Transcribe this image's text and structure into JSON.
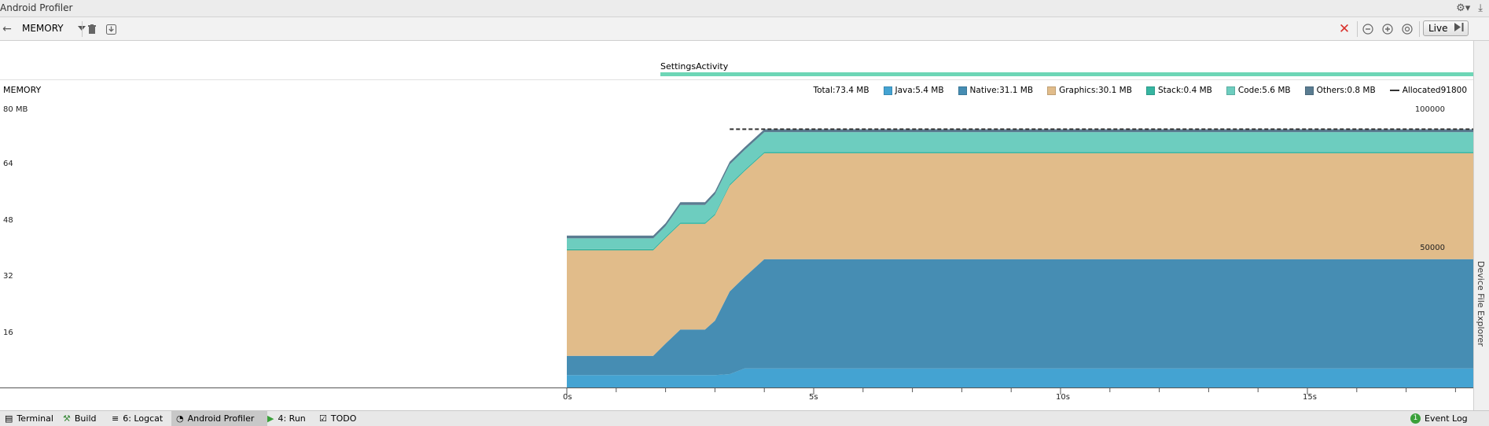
{
  "window": {
    "title": "Android Profiler"
  },
  "toolbar": {
    "profiler_select": "MEMORY",
    "live_label": "Live"
  },
  "events": {
    "activity": "SettingsActivity"
  },
  "memory": {
    "label": "MEMORY",
    "y_axis_left": [
      "80 MB",
      "64",
      "48",
      "32",
      "16"
    ],
    "y_axis_right": [
      "100000",
      "50000"
    ],
    "legend": {
      "total": "Total:73.4 MB",
      "java": "Java:5.4 MB",
      "native": "Native:31.1 MB",
      "graphics": "Graphics:30.1 MB",
      "stack": "Stack:0.4 MB",
      "code": "Code:5.6 MB",
      "others": "Others:0.8 MB",
      "allocated": "Allocated91800"
    },
    "time_labels": [
      "0s",
      "5s",
      "10s",
      "15s"
    ]
  },
  "colors": {
    "java": "#44a3d2",
    "native": "#468db3",
    "graphics": "#e1bc8a",
    "stack": "#36b5a1",
    "code": "#6dcdbf",
    "others": "#5a7c91",
    "activity": "#6dd6b6"
  },
  "right_panel": {
    "device_file_explorer": "Device File Explorer"
  },
  "statusbar": {
    "terminal": "Terminal",
    "build": "Build",
    "logcat": "6: Logcat",
    "profiler": "Android Profiler",
    "run": "4: Run",
    "todo": "TODO",
    "event_log": "Event Log",
    "event_log_count": "1"
  },
  "chart_data": {
    "type": "area",
    "x": [
      0.0,
      1.75,
      2.0,
      2.3,
      2.8,
      3.0,
      3.3,
      3.6,
      4.0,
      18.0
    ],
    "series": [
      {
        "name": "Java",
        "values": [
          3.5,
          3.5,
          3.5,
          3.5,
          3.5,
          3.5,
          3.8,
          5.4,
          5.4,
          5.4
        ]
      },
      {
        "name": "Native",
        "values": [
          5.5,
          5.5,
          9.0,
          13.0,
          13.0,
          15.5,
          23.5,
          26.0,
          31.1,
          31.1
        ]
      },
      {
        "name": "Graphics",
        "values": [
          30.0,
          30.0,
          30.0,
          30.0,
          30.0,
          30.0,
          30.1,
          30.1,
          30.1,
          30.1
        ]
      },
      {
        "name": "Stack",
        "values": [
          0.4,
          0.4,
          0.4,
          0.4,
          0.4,
          0.4,
          0.4,
          0.4,
          0.4,
          0.4
        ]
      },
      {
        "name": "Code",
        "values": [
          3.0,
          3.0,
          3.0,
          5.0,
          5.0,
          5.5,
          5.6,
          5.6,
          5.6,
          5.6
        ]
      },
      {
        "name": "Others",
        "values": [
          0.8,
          0.8,
          0.8,
          0.8,
          0.8,
          0.8,
          0.8,
          0.8,
          0.8,
          0.8
        ]
      }
    ],
    "allocated": {
      "name": "Allocated",
      "from_x": 3.3,
      "value": 91800
    },
    "y_range_mb": [
      0,
      80
    ],
    "y2_range": [
      0,
      100000
    ],
    "x_range_s": [
      -11.5,
      18
    ]
  }
}
